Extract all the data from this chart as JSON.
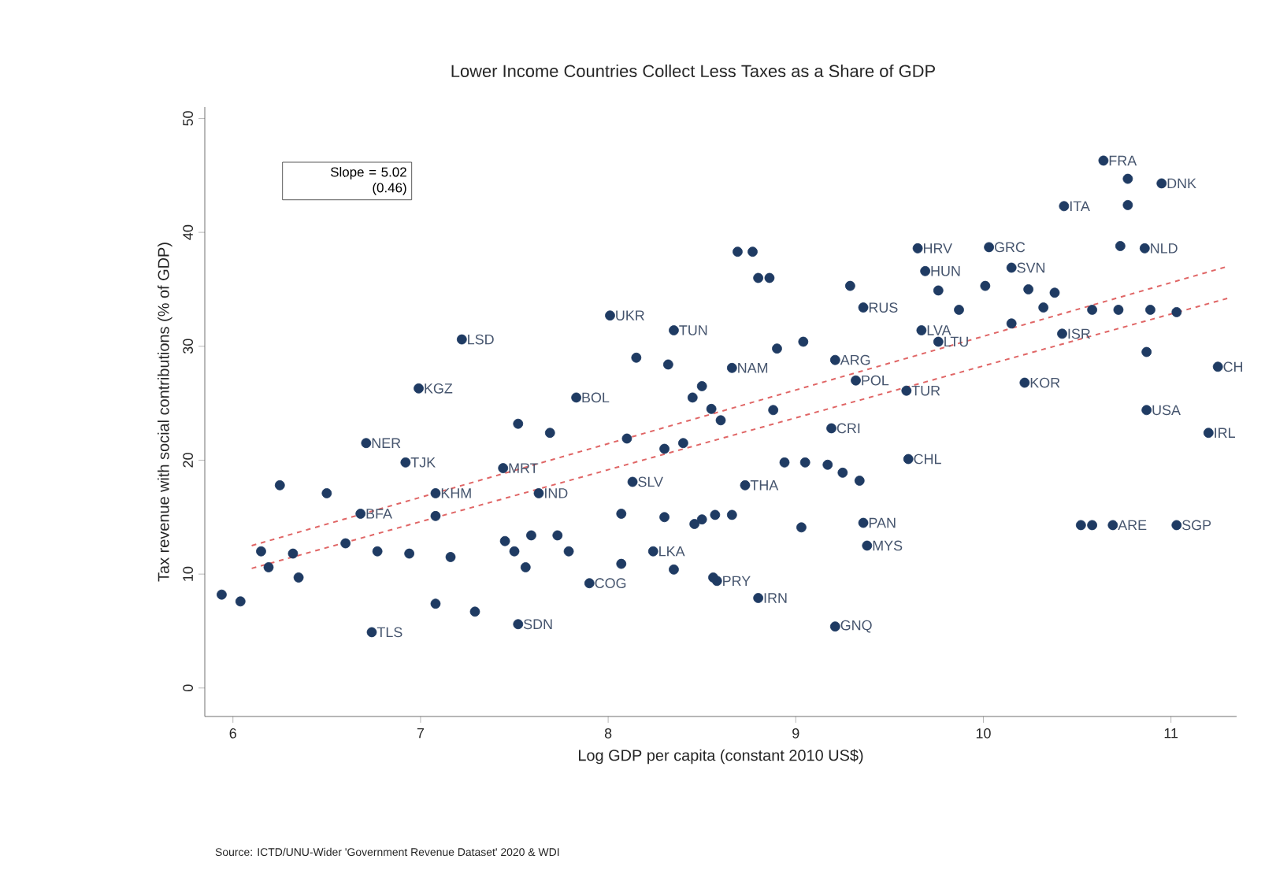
{
  "chart_data": {
    "type": "scatter",
    "title": "Lower Income Countries Collect Less Taxes as a Share of GDP",
    "xlabel": "Log GDP per capita (constant 2010 US$)",
    "ylabel": "Tax revenue with social contributions (% of GDP)",
    "xlim": [
      5.85,
      11.35
    ],
    "ylim": [
      -2.5,
      51
    ],
    "xticks": [
      6,
      7,
      8,
      9,
      10,
      11
    ],
    "yticks": [
      0,
      10,
      20,
      30,
      40,
      50
    ],
    "grid": false,
    "legend": false,
    "marker": "circle",
    "series": [
      {
        "color": "#1f3b63",
        "x": [
          10.64,
          10.77,
          10.95,
          10.43,
          10.77,
          9.65,
          10.03,
          10.73,
          10.86,
          8.69,
          8.77,
          8.8,
          8.86,
          9.69,
          10.15,
          9.29,
          9.36,
          9.76,
          10.01,
          10.24,
          10.38,
          9.87,
          10.15,
          10.32,
          10.58,
          10.72,
          10.89,
          11.03,
          10.42,
          9.67,
          9.76,
          10.87,
          11.25,
          10.22,
          10.87,
          11.2,
          11.03,
          10.52,
          10.58,
          10.69,
          9.59,
          9.32,
          9.21,
          9.04,
          8.9,
          8.66,
          8.88,
          9.19,
          9.6,
          8.94,
          9.05,
          9.17,
          9.25,
          9.34,
          8.73,
          9.36,
          9.38,
          9.03,
          8.57,
          8.66,
          9.21,
          8.8,
          8.58,
          7.22,
          6.99,
          8.01,
          8.35,
          8.15,
          8.32,
          7.83,
          7.52,
          7.69,
          8.1,
          6.71,
          6.92,
          7.44,
          8.13,
          6.25,
          6.5,
          7.08,
          7.63,
          6.68,
          7.08,
          8.07,
          8.24,
          8.46,
          7.45,
          7.5,
          7.59,
          7.73,
          7.79,
          6.15,
          6.32,
          6.6,
          6.77,
          6.94,
          7.16,
          6.19,
          6.35,
          7.56,
          7.9,
          8.07,
          8.35,
          8.56,
          5.94,
          6.04,
          7.08,
          7.29,
          7.52,
          6.74,
          8.45,
          8.55,
          8.5,
          8.6,
          8.4,
          8.3,
          8.3,
          8.5
        ],
        "values": [
          46.3,
          44.7,
          44.3,
          42.3,
          42.4,
          38.6,
          38.7,
          38.8,
          38.6,
          38.3,
          38.3,
          36.0,
          36.0,
          36.6,
          36.9,
          35.3,
          33.4,
          34.9,
          35.3,
          35.0,
          34.7,
          33.2,
          32.0,
          33.4,
          33.2,
          33.2,
          33.2,
          33.0,
          31.1,
          31.4,
          30.4,
          29.5,
          28.2,
          26.8,
          24.4,
          22.4,
          14.3,
          14.3,
          14.3,
          14.3,
          26.1,
          27.0,
          28.8,
          30.4,
          29.8,
          28.1,
          24.4,
          22.8,
          20.1,
          19.8,
          19.8,
          19.6,
          18.9,
          18.2,
          17.8,
          14.5,
          12.5,
          14.1,
          15.2,
          15.2,
          5.4,
          7.9,
          9.4,
          30.6,
          26.3,
          32.7,
          31.4,
          29.0,
          28.4,
          25.5,
          23.2,
          22.4,
          21.9,
          21.5,
          19.8,
          19.3,
          18.1,
          17.8,
          17.1,
          17.1,
          17.1,
          15.3,
          15.1,
          15.3,
          12.0,
          14.4,
          12.9,
          12.0,
          13.4,
          13.4,
          12.0,
          12.0,
          11.8,
          12.7,
          12.0,
          11.8,
          11.5,
          10.6,
          9.7,
          10.6,
          9.2,
          10.9,
          10.4,
          9.7,
          8.2,
          7.6,
          7.4,
          6.7,
          5.6,
          4.9,
          25.5,
          24.5,
          26.5,
          23.5,
          21.5,
          21.0,
          15.0,
          14.8
        ]
      },
      {
        "type": "line",
        "color": "#e06666",
        "line_style": "dashed",
        "marker": "none",
        "x": [
          6.1,
          11.3
        ],
        "values": [
          10.5,
          34.2
        ]
      },
      {
        "type": "line",
        "color": "#e06666",
        "line_style": "dashed",
        "marker": "none",
        "x": [
          6.1,
          11.3
        ],
        "values": [
          12.5,
          37.0
        ]
      }
    ],
    "annotations": [
      "Slope = 5.02\n(0.46)",
      "Source: ICTD/UNU-Wider 'Government Revenue Dataset' 2020 & WDI",
      {
        "text": "FRA",
        "x": 10.64,
        "y": 46.3
      },
      {
        "text": "DNK",
        "x": 10.95,
        "y": 44.3
      },
      {
        "text": "ITA",
        "x": 10.43,
        "y": 42.3
      },
      {
        "text": "HRV",
        "x": 9.65,
        "y": 38.6
      },
      {
        "text": "GRC",
        "x": 10.03,
        "y": 38.7
      },
      {
        "text": "NLD",
        "x": 10.86,
        "y": 38.6
      },
      {
        "text": "HUN",
        "x": 9.69,
        "y": 36.6
      },
      {
        "text": "SVN",
        "x": 10.15,
        "y": 36.9
      },
      {
        "text": "RUS",
        "x": 9.36,
        "y": 33.4
      },
      {
        "text": "ISR",
        "x": 10.42,
        "y": 31.1
      },
      {
        "text": "LVA",
        "x": 9.67,
        "y": 31.4
      },
      {
        "text": "LTU",
        "x": 9.76,
        "y": 30.4
      },
      {
        "text": "CH",
        "x": 11.25,
        "y": 28.2
      },
      {
        "text": "KOR",
        "x": 10.22,
        "y": 26.8
      },
      {
        "text": "USA",
        "x": 10.87,
        "y": 24.4
      },
      {
        "text": "IRL",
        "x": 11.2,
        "y": 22.4
      },
      {
        "text": "SGP",
        "x": 11.03,
        "y": 14.3
      },
      {
        "text": "ARE",
        "x": 10.69,
        "y": 14.3
      },
      {
        "text": "TUR",
        "x": 9.59,
        "y": 26.1
      },
      {
        "text": "POL",
        "x": 9.32,
        "y": 27.0
      },
      {
        "text": "ARG",
        "x": 9.21,
        "y": 28.8
      },
      {
        "text": "NAM",
        "x": 8.66,
        "y": 28.1
      },
      {
        "text": "CRI",
        "x": 9.19,
        "y": 22.8
      },
      {
        "text": "CHL",
        "x": 9.6,
        "y": 20.1
      },
      {
        "text": "THA",
        "x": 8.73,
        "y": 17.8
      },
      {
        "text": "PAN",
        "x": 9.36,
        "y": 14.5
      },
      {
        "text": "MYS",
        "x": 9.38,
        "y": 12.5
      },
      {
        "text": "GNQ",
        "x": 9.21,
        "y": 5.4
      },
      {
        "text": "IRN",
        "x": 8.8,
        "y": 7.9
      },
      {
        "text": "PRY",
        "x": 8.58,
        "y": 9.4
      },
      {
        "text": "LSD",
        "x": 7.22,
        "y": 30.6
      },
      {
        "text": "KGZ",
        "x": 6.99,
        "y": 26.3
      },
      {
        "text": "UKR",
        "x": 8.01,
        "y": 32.7
      },
      {
        "text": "TUN",
        "x": 8.35,
        "y": 31.4
      },
      {
        "text": "BOL",
        "x": 7.83,
        "y": 25.5
      },
      {
        "text": "NER",
        "x": 6.71,
        "y": 21.5
      },
      {
        "text": "TJK",
        "x": 6.92,
        "y": 19.8
      },
      {
        "text": "MRT",
        "x": 7.44,
        "y": 19.3
      },
      {
        "text": "SLV",
        "x": 8.13,
        "y": 18.1
      },
      {
        "text": "KHM",
        "x": 7.08,
        "y": 17.1
      },
      {
        "text": "IND",
        "x": 7.63,
        "y": 17.1
      },
      {
        "text": "BFA",
        "x": 6.68,
        "y": 15.3
      },
      {
        "text": "LKA",
        "x": 8.24,
        "y": 12.0
      },
      {
        "text": "COG",
        "x": 7.9,
        "y": 9.2
      },
      {
        "text": "SDN",
        "x": 7.52,
        "y": 5.6
      },
      {
        "text": "TLS",
        "x": 6.74,
        "y": 4.9
      }
    ]
  }
}
